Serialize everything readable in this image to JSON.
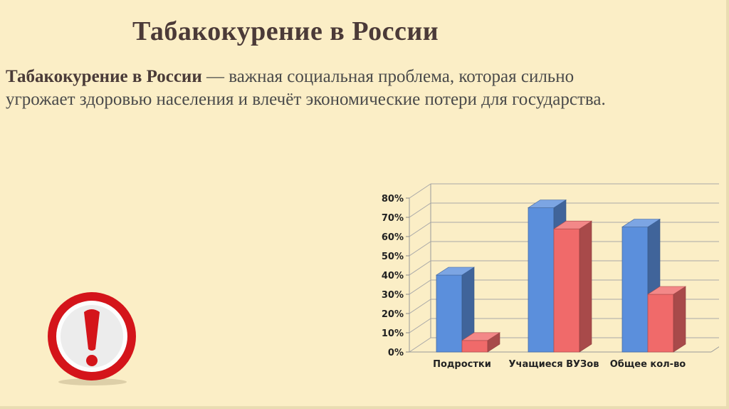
{
  "slide": {
    "title": "Табакокурение в России",
    "body_bold": "Табакокурение в России",
    "body_text": " — важная социальная  проблема, которая сильно угрожает здоровью населения и влечёт экономические потери для государства."
  },
  "icons": {
    "warning": "exclamation-in-red-circle-icon"
  },
  "chart_data": {
    "type": "bar",
    "style": "3d-clustered",
    "categories": [
      "Подростки",
      "Учащиеся ВУЗов",
      "Общее кол-во"
    ],
    "series": [
      {
        "values": [
          40,
          75,
          65
        ],
        "color": "#5b8fdc"
      },
      {
        "values": [
          6,
          64,
          30
        ],
        "color": "#f06a6a"
      }
    ],
    "yticks": [
      "0%",
      "10%",
      "20%",
      "30%",
      "40%",
      "50%",
      "60%",
      "70%",
      "80%"
    ],
    "ylim": [
      0,
      80
    ],
    "grid": true,
    "legend": "none"
  }
}
